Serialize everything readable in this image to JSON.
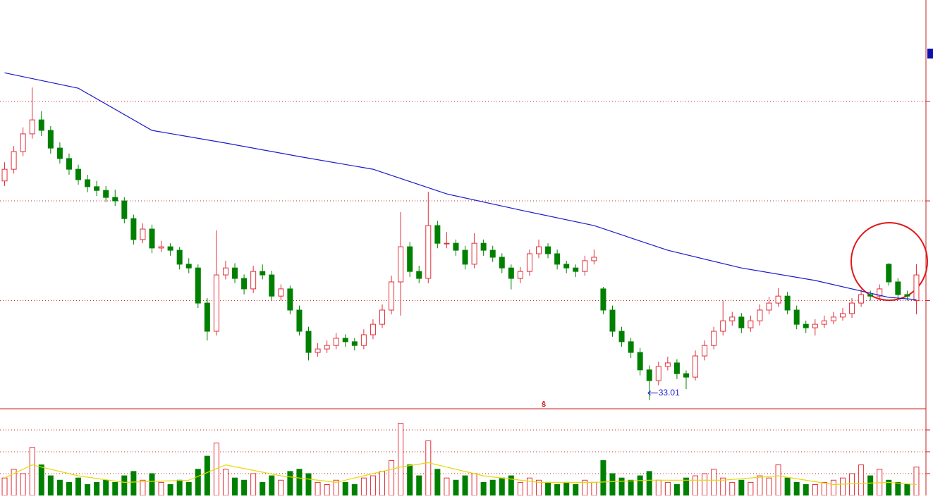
{
  "chart_data": {
    "type": "candlestick",
    "up_color": "#e0303a",
    "down_color": "#008000",
    "grid_color": "#cc2222",
    "ylim": [
      32.66,
      49.06
    ],
    "gridlines": [
      37,
      41,
      45
    ],
    "ohlc": [
      [
        41.8,
        42.55,
        41.6,
        42.27
      ],
      [
        42.27,
        43.2,
        42.1,
        42.98
      ],
      [
        42.98,
        43.95,
        42.8,
        43.69
      ],
      [
        43.69,
        45.55,
        43.5,
        44.25
      ],
      [
        44.25,
        44.6,
        43.6,
        43.83
      ],
      [
        43.83,
        44.0,
        42.9,
        43.12
      ],
      [
        43.12,
        43.35,
        42.5,
        42.7
      ],
      [
        42.7,
        42.9,
        42.05,
        42.27
      ],
      [
        42.27,
        42.45,
        41.65,
        41.85
      ],
      [
        41.85,
        42.05,
        41.35,
        41.57
      ],
      [
        41.57,
        41.8,
        41.2,
        41.42
      ],
      [
        41.42,
        41.6,
        40.95,
        41.14
      ],
      [
        41.14,
        41.45,
        40.8,
        41.0
      ],
      [
        41.0,
        41.15,
        40.1,
        40.29
      ],
      [
        40.29,
        40.45,
        39.25,
        39.45
      ],
      [
        39.45,
        40.1,
        39.3,
        39.87
      ],
      [
        39.87,
        40.05,
        38.9,
        39.11
      ],
      [
        39.11,
        39.4,
        38.95,
        39.16
      ],
      [
        39.16,
        39.3,
        38.8,
        39.02
      ],
      [
        39.02,
        39.15,
        38.25,
        38.46
      ],
      [
        38.46,
        38.7,
        38.1,
        38.31
      ],
      [
        38.31,
        38.45,
        36.7,
        36.9
      ],
      [
        36.9,
        37.1,
        35.4,
        35.77
      ],
      [
        35.77,
        39.82,
        35.6,
        38.03
      ],
      [
        38.03,
        38.6,
        37.85,
        38.31
      ],
      [
        38.31,
        38.5,
        37.7,
        37.89
      ],
      [
        37.89,
        38.05,
        37.25,
        37.47
      ],
      [
        37.47,
        38.4,
        37.3,
        38.17
      ],
      [
        38.17,
        38.45,
        37.85,
        38.03
      ],
      [
        38.03,
        38.2,
        37.0,
        37.18
      ],
      [
        37.18,
        37.65,
        37.0,
        37.47
      ],
      [
        37.47,
        37.6,
        36.45,
        36.62
      ],
      [
        36.62,
        36.8,
        35.6,
        35.77
      ],
      [
        35.77,
        35.95,
        34.6,
        34.92
      ],
      [
        34.92,
        35.3,
        34.75,
        35.06
      ],
      [
        35.06,
        35.4,
        34.9,
        35.2
      ],
      [
        35.2,
        35.7,
        35.05,
        35.49
      ],
      [
        35.49,
        35.65,
        35.15,
        35.35
      ],
      [
        35.35,
        35.5,
        35.0,
        35.2
      ],
      [
        35.2,
        35.85,
        35.05,
        35.63
      ],
      [
        35.63,
        36.25,
        35.45,
        36.05
      ],
      [
        36.05,
        36.85,
        35.9,
        36.62
      ],
      [
        36.62,
        38.0,
        36.45,
        37.75
      ],
      [
        37.75,
        40.55,
        36.4,
        39.16
      ],
      [
        39.16,
        39.35,
        37.95,
        38.17
      ],
      [
        38.17,
        38.4,
        37.7,
        37.89
      ],
      [
        37.89,
        41.37,
        37.7,
        40.01
      ],
      [
        40.01,
        40.2,
        39.1,
        39.3
      ],
      [
        39.3,
        39.75,
        39.1,
        39.3
      ],
      [
        39.3,
        39.45,
        38.8,
        39.02
      ],
      [
        39.02,
        39.2,
        38.25,
        38.46
      ],
      [
        38.46,
        39.7,
        38.3,
        39.3
      ],
      [
        39.3,
        39.45,
        38.8,
        39.02
      ],
      [
        39.02,
        39.2,
        38.55,
        38.74
      ],
      [
        38.74,
        38.9,
        38.1,
        38.31
      ],
      [
        38.31,
        38.45,
        37.45,
        37.89
      ],
      [
        37.89,
        38.35,
        37.7,
        38.17
      ],
      [
        38.17,
        39.05,
        38.0,
        38.88
      ],
      [
        38.88,
        39.45,
        38.7,
        39.16
      ],
      [
        39.16,
        39.3,
        38.7,
        38.88
      ],
      [
        38.88,
        39.05,
        38.25,
        38.46
      ],
      [
        38.46,
        38.6,
        38.1,
        38.31
      ],
      [
        38.31,
        38.45,
        37.95,
        38.17
      ],
      [
        38.17,
        38.8,
        38.0,
        38.6
      ],
      [
        38.6,
        39.05,
        38.45,
        38.74
      ],
      [
        37.47,
        37.55,
        36.45,
        36.62
      ],
      [
        36.62,
        36.8,
        35.55,
        35.77
      ],
      [
        35.77,
        35.95,
        35.15,
        35.35
      ],
      [
        35.35,
        35.5,
        34.7,
        34.92
      ],
      [
        34.92,
        35.1,
        34.0,
        34.22
      ],
      [
        34.22,
        34.4,
        33.01,
        33.79
      ],
      [
        33.79,
        34.55,
        33.6,
        34.36
      ],
      [
        34.36,
        34.75,
        34.2,
        34.5
      ],
      [
        34.5,
        34.65,
        33.85,
        34.07
      ],
      [
        34.07,
        34.2,
        33.45,
        33.93
      ],
      [
        33.93,
        35.0,
        33.8,
        34.78
      ],
      [
        34.78,
        35.4,
        34.6,
        35.2
      ],
      [
        35.2,
        35.95,
        35.05,
        35.77
      ],
      [
        35.77,
        37.0,
        35.6,
        36.19
      ],
      [
        36.19,
        36.55,
        36.0,
        36.34
      ],
      [
        36.34,
        36.5,
        35.7,
        35.91
      ],
      [
        35.91,
        36.4,
        35.75,
        36.19
      ],
      [
        36.19,
        36.85,
        36.0,
        36.62
      ],
      [
        36.62,
        37.15,
        36.45,
        36.9
      ],
      [
        36.9,
        37.5,
        36.75,
        37.18
      ],
      [
        37.18,
        37.35,
        36.45,
        36.62
      ],
      [
        36.62,
        36.8,
        35.85,
        36.05
      ],
      [
        36.05,
        36.2,
        35.7,
        35.91
      ],
      [
        35.91,
        36.25,
        35.6,
        36.05
      ],
      [
        36.05,
        36.4,
        35.9,
        36.19
      ],
      [
        36.19,
        36.55,
        36.05,
        36.34
      ],
      [
        36.34,
        36.7,
        36.2,
        36.48
      ],
      [
        36.48,
        37.1,
        36.3,
        36.9
      ],
      [
        36.9,
        37.45,
        36.75,
        37.24
      ],
      [
        37.24,
        37.4,
        37.0,
        37.18
      ],
      [
        37.18,
        37.65,
        37.0,
        37.47
      ],
      [
        38.46,
        38.5,
        37.6,
        37.75
      ],
      [
        37.75,
        37.9,
        37.1,
        37.24
      ],
      [
        37.24,
        37.4,
        37.0,
        37.18
      ],
      [
        37.0,
        38.46,
        36.45,
        38.03
      ]
    ],
    "ma": {
      "color": "#1a1acc",
      "x": [
        0,
        8,
        16,
        24,
        32,
        40,
        48,
        56,
        64,
        72,
        80,
        88,
        96,
        99
      ],
      "values": [
        46.14,
        45.52,
        43.83,
        43.32,
        42.78,
        42.27,
        41.28,
        40.63,
        40.01,
        39.02,
        38.31,
        37.81,
        37.13,
        37.04
      ]
    },
    "low_label": "33.01",
    "low_index": 70,
    "marker": "ŝ",
    "volume": {
      "ylim": [
        0,
        38.7
      ],
      "gridlines": [
        10,
        20,
        30
      ],
      "values": [
        8,
        12,
        10,
        22,
        14,
        9,
        7,
        6,
        8,
        5,
        6,
        7,
        6,
        9,
        11,
        7,
        10,
        6,
        5,
        7,
        6,
        12,
        18,
        24,
        12,
        8,
        7,
        10,
        6,
        9,
        7,
        11,
        12,
        10,
        6,
        5,
        7,
        6,
        5,
        8,
        9,
        11,
        16,
        33,
        14,
        9,
        25,
        12,
        8,
        7,
        9,
        10,
        6,
        7,
        8,
        9,
        6,
        8,
        7,
        6,
        5,
        6,
        5,
        7,
        6,
        16,
        10,
        8,
        7,
        9,
        11,
        7,
        6,
        5,
        8,
        9,
        10,
        12,
        8,
        6,
        7,
        6,
        9,
        8,
        14,
        8,
        6,
        5,
        5,
        6,
        7,
        8,
        10,
        14,
        9,
        12,
        7,
        6,
        5,
        13
      ],
      "ma": {
        "color": "#e8d800",
        "x": [
          0,
          3,
          8,
          13,
          20,
          24,
          30,
          36,
          43,
          46,
          52,
          58,
          64,
          70,
          78,
          84,
          90,
          96,
          99
        ],
        "values": [
          8,
          14,
          9,
          6,
          7,
          14,
          9,
          6,
          13,
          15,
          9,
          6,
          6,
          7,
          7,
          9,
          5,
          6,
          5
        ]
      }
    }
  }
}
